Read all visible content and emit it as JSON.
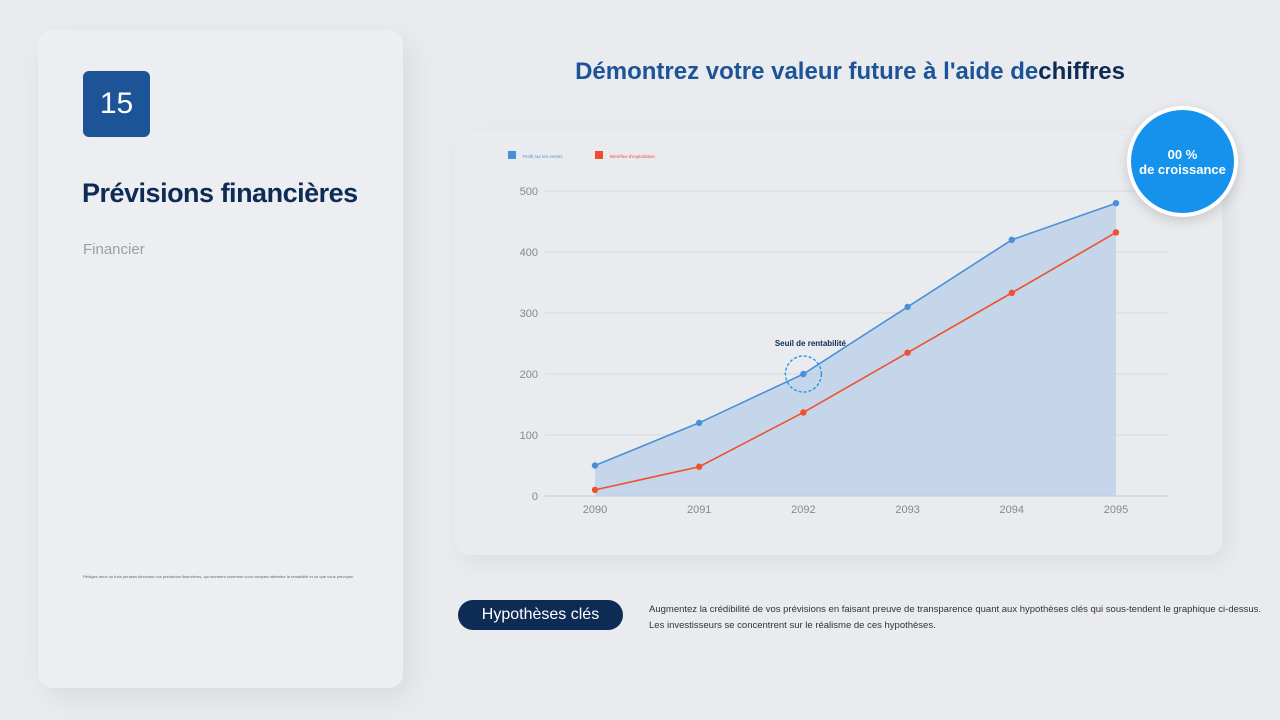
{
  "left": {
    "number": "15",
    "title": "Prévisions financières",
    "subtitle": "Financier",
    "footnote": "Rédigez deux ou trois phrases décrivant vos prévisions financières, qui montrent comment vous comptez atteindre la rentabilité et ce que vous prévoyez."
  },
  "header": {
    "title_a": "Démontrez votre valeur future à l'aide de",
    "title_b": "chiffres"
  },
  "badge": {
    "line1": "00 %",
    "line2": "de croissance"
  },
  "hypotheses": {
    "label": "Hypothèses clés",
    "line1": "Augmentez la crédibilité de vos prévisions en faisant preuve de transparence quant aux hypothèses clés qui sous-tendent le graphique ci-dessus.",
    "line2": "Les investisseurs se concentrent sur le réalisme de ces hypothèses."
  },
  "chart_data": {
    "type": "line",
    "x": [
      "2090",
      "2091",
      "2092",
      "2093",
      "2094",
      "2095"
    ],
    "yticks": [
      0,
      100,
      200,
      300,
      400,
      500
    ],
    "ylim": [
      0,
      500
    ],
    "grid": true,
    "legend": "top-left",
    "series": [
      {
        "name": "Profit sur les ventes",
        "color": "#4a90d9",
        "fill": true,
        "values": [
          50,
          120,
          200,
          310,
          420,
          480
        ]
      },
      {
        "name": "Bénéfice d'exploitation",
        "color": "#f0502d",
        "fill": false,
        "values": [
          10,
          48,
          137,
          235,
          333,
          432
        ]
      }
    ],
    "annotation": {
      "text": "Seuil de rentabilité",
      "x": "2092",
      "y": 200
    }
  }
}
